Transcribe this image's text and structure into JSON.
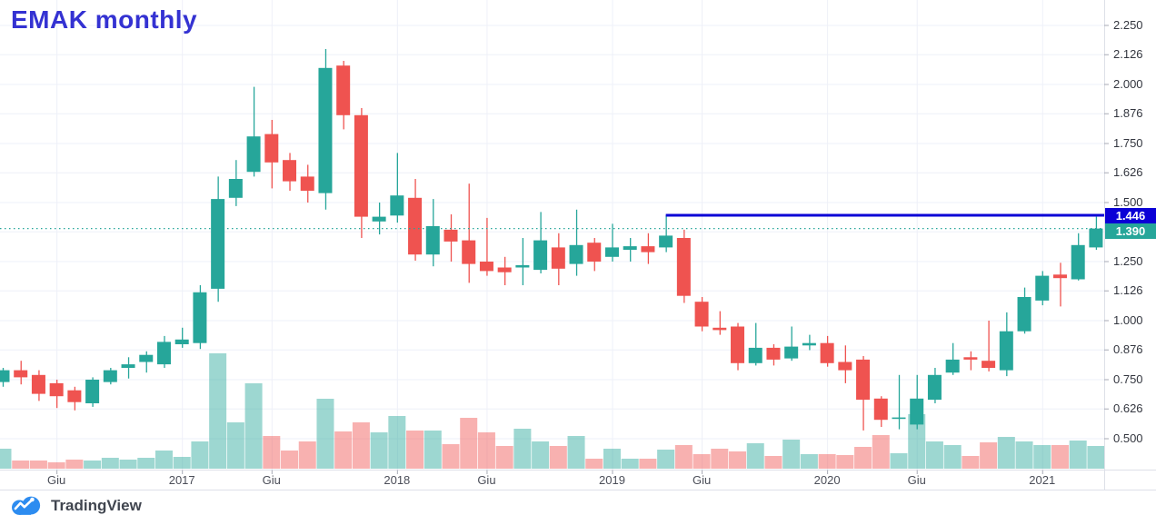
{
  "title": "EMAK monthly",
  "logo": {
    "text": "TradingView"
  },
  "price_line": {
    "label": "1.446",
    "value": 1.446,
    "type": "horizontal-ray",
    "start_month": "2019-04"
  },
  "last_price": {
    "label": "1.390",
    "value": 1.39
  },
  "price_axis": {
    "ticks": [
      {
        "label": "2.250",
        "value": 2.25
      },
      {
        "label": "2.126",
        "value": 2.126
      },
      {
        "label": "2.000",
        "value": 2.0
      },
      {
        "label": "1.876",
        "value": 1.876
      },
      {
        "label": "1.750",
        "value": 1.75
      },
      {
        "label": "1.626",
        "value": 1.626
      },
      {
        "label": "1.500",
        "value": 1.5
      },
      {
        "label": "1.376",
        "value": 1.376,
        "hidden": true
      },
      {
        "label": "1.250",
        "value": 1.25
      },
      {
        "label": "1.126",
        "value": 1.126
      },
      {
        "label": "1.000",
        "value": 1.0
      },
      {
        "label": "0.876",
        "value": 0.876
      },
      {
        "label": "0.750",
        "value": 0.75
      },
      {
        "label": "0.626",
        "value": 0.626
      },
      {
        "label": "0.500",
        "value": 0.5
      }
    ]
  },
  "time_axis": {
    "labels": [
      {
        "index": 3,
        "text": "Giu"
      },
      {
        "index": 10,
        "text": "2017"
      },
      {
        "index": 15,
        "text": "Giu"
      },
      {
        "index": 22,
        "text": "2018"
      },
      {
        "index": 27,
        "text": "Giu"
      },
      {
        "index": 34,
        "text": "2019"
      },
      {
        "index": 39,
        "text": "Giu"
      },
      {
        "index": 46,
        "text": "2020"
      },
      {
        "index": 51,
        "text": "Giu"
      },
      {
        "index": 58,
        "text": "2021"
      }
    ]
  },
  "theme": {
    "up": "#26a69a",
    "down": "#ef5350",
    "vol_up": "rgba(38,166,154,0.45)",
    "vol_down": "rgba(239,83,80,0.45)",
    "grid": "#eef0f8",
    "axis_border": "#dde0e8",
    "tick_mark": "#a7aab5",
    "ray_color": "#0b00d6",
    "last_line_color": "#26a69a",
    "badge_line_bg": "#0b00d6",
    "badge_last_bg": "#26a69a",
    "logo_blue": "#2d8cf0",
    "title_color": "#3432d2"
  },
  "chart_data": {
    "type": "candlestick",
    "title": "EMAK monthly",
    "x_unit": "month",
    "ylim": [
      0.365,
      2.358
    ],
    "grid": true,
    "volume_unit": "relative",
    "columns": [
      "month",
      "open",
      "high",
      "low",
      "close",
      "volume"
    ],
    "candles": [
      [
        "2016-03",
        0.74,
        0.8,
        0.72,
        0.79,
        22
      ],
      [
        "2016-04",
        0.79,
        0.83,
        0.73,
        0.76,
        9
      ],
      [
        "2016-05",
        0.77,
        0.79,
        0.66,
        0.69,
        9
      ],
      [
        "2016-06",
        0.735,
        0.75,
        0.63,
        0.68,
        7
      ],
      [
        "2016-07",
        0.705,
        0.72,
        0.62,
        0.655,
        10
      ],
      [
        "2016-08",
        0.65,
        0.76,
        0.635,
        0.75,
        9
      ],
      [
        "2016-09",
        0.74,
        0.8,
        0.73,
        0.79,
        12
      ],
      [
        "2016-10",
        0.8,
        0.845,
        0.755,
        0.815,
        10
      ],
      [
        "2016-11",
        0.825,
        0.87,
        0.78,
        0.855,
        12
      ],
      [
        "2016-12",
        0.815,
        0.935,
        0.8,
        0.91,
        20
      ],
      [
        "2017-01",
        0.9,
        0.97,
        0.885,
        0.92,
        13
      ],
      [
        "2017-02",
        0.905,
        1.15,
        0.88,
        1.12,
        30
      ],
      [
        "2017-03",
        1.135,
        1.61,
        1.08,
        1.515,
        127
      ],
      [
        "2017-04",
        1.52,
        1.68,
        1.485,
        1.6,
        51
      ],
      [
        "2017-05",
        1.63,
        1.99,
        1.61,
        1.78,
        94
      ],
      [
        "2017-06",
        1.79,
        1.85,
        1.56,
        1.67,
        36
      ],
      [
        "2017-07",
        1.68,
        1.71,
        1.55,
        1.59,
        20
      ],
      [
        "2017-08",
        1.61,
        1.66,
        1.5,
        1.55,
        30
      ],
      [
        "2017-09",
        1.54,
        2.15,
        1.47,
        2.07,
        77
      ],
      [
        "2017-10",
        2.08,
        2.1,
        1.81,
        1.87,
        41
      ],
      [
        "2017-11",
        1.87,
        1.9,
        1.35,
        1.44,
        51
      ],
      [
        "2017-12",
        1.42,
        1.5,
        1.365,
        1.44,
        40
      ],
      [
        "2018-01",
        1.445,
        1.71,
        1.415,
        1.53,
        58
      ],
      [
        "2018-02",
        1.52,
        1.6,
        1.254,
        1.28,
        42
      ],
      [
        "2018-03",
        1.28,
        1.515,
        1.23,
        1.4,
        42
      ],
      [
        "2018-04",
        1.385,
        1.45,
        1.25,
        1.335,
        27
      ],
      [
        "2018-05",
        1.34,
        1.58,
        1.16,
        1.24,
        56
      ],
      [
        "2018-06",
        1.25,
        1.435,
        1.19,
        1.21,
        40
      ],
      [
        "2018-07",
        1.225,
        1.27,
        1.15,
        1.205,
        25
      ],
      [
        "2018-08",
        1.225,
        1.35,
        1.15,
        1.235,
        44
      ],
      [
        "2018-09",
        1.215,
        1.46,
        1.2,
        1.34,
        30
      ],
      [
        "2018-10",
        1.31,
        1.37,
        1.15,
        1.22,
        25
      ],
      [
        "2018-11",
        1.24,
        1.47,
        1.19,
        1.32,
        36
      ],
      [
        "2018-12",
        1.33,
        1.35,
        1.21,
        1.25,
        11
      ],
      [
        "2019-01",
        1.27,
        1.41,
        1.25,
        1.31,
        22
      ],
      [
        "2019-02",
        1.3,
        1.35,
        1.25,
        1.315,
        11
      ],
      [
        "2019-03",
        1.315,
        1.37,
        1.24,
        1.29,
        11
      ],
      [
        "2019-04",
        1.31,
        1.446,
        1.29,
        1.36,
        21
      ],
      [
        "2019-05",
        1.35,
        1.385,
        1.075,
        1.105,
        26
      ],
      [
        "2019-06",
        1.08,
        1.1,
        0.955,
        0.975,
        16
      ],
      [
        "2019-07",
        0.97,
        1.04,
        0.94,
        0.96,
        22
      ],
      [
        "2019-08",
        0.975,
        0.99,
        0.79,
        0.82,
        19
      ],
      [
        "2019-09",
        0.82,
        0.99,
        0.81,
        0.885,
        28
      ],
      [
        "2019-10",
        0.885,
        0.9,
        0.81,
        0.835,
        14
      ],
      [
        "2019-11",
        0.84,
        0.975,
        0.83,
        0.89,
        32
      ],
      [
        "2019-12",
        0.895,
        0.94,
        0.875,
        0.905,
        16
      ],
      [
        "2020-01",
        0.905,
        0.935,
        0.805,
        0.82,
        16
      ],
      [
        "2020-02",
        0.825,
        0.895,
        0.735,
        0.79,
        15
      ],
      [
        "2020-03",
        0.835,
        0.85,
        0.535,
        0.665,
        24
      ],
      [
        "2020-04",
        0.67,
        0.68,
        0.55,
        0.58,
        37
      ],
      [
        "2020-05",
        0.585,
        0.77,
        0.54,
        0.59,
        17
      ],
      [
        "2020-06",
        0.56,
        0.77,
        0.54,
        0.67,
        60
      ],
      [
        "2020-07",
        0.665,
        0.8,
        0.65,
        0.77,
        30
      ],
      [
        "2020-08",
        0.78,
        0.905,
        0.77,
        0.835,
        26
      ],
      [
        "2020-09",
        0.845,
        0.87,
        0.79,
        0.835,
        14
      ],
      [
        "2020-10",
        0.83,
        1.0,
        0.785,
        0.8,
        29
      ],
      [
        "2020-11",
        0.79,
        1.035,
        0.765,
        0.955,
        35
      ],
      [
        "2020-12",
        0.955,
        1.14,
        0.945,
        1.1,
        30
      ],
      [
        "2021-01",
        1.085,
        1.21,
        1.065,
        1.19,
        26
      ],
      [
        "2021-02",
        1.195,
        1.245,
        1.06,
        1.18,
        26
      ],
      [
        "2021-03",
        1.175,
        1.37,
        1.17,
        1.32,
        31
      ],
      [
        "2021-04",
        1.31,
        1.44,
        1.3,
        1.39,
        25
      ]
    ]
  }
}
